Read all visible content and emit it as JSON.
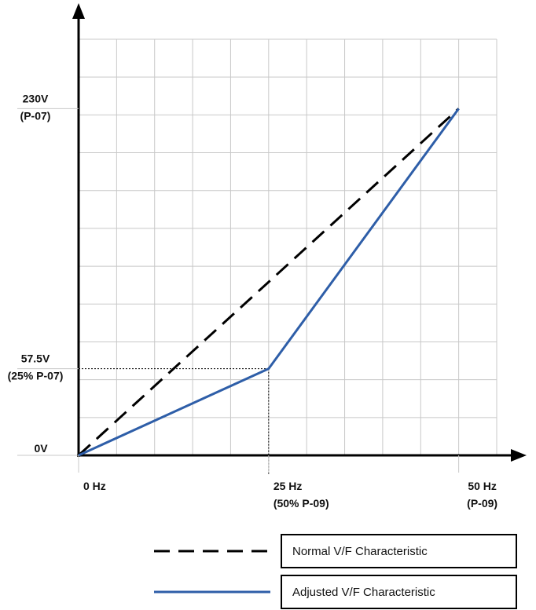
{
  "chart_data": {
    "type": "line",
    "xlim": [
      0,
      55
    ],
    "ylim": [
      0,
      276
    ],
    "grid": true,
    "legend_placement": "bottom",
    "x_ticks": [
      {
        "value": 0,
        "line1": "0 Hz",
        "line2": ""
      },
      {
        "value": 25,
        "line1": "25 Hz",
        "line2": "(50% P-09)"
      },
      {
        "value": 50,
        "line1": "50 Hz",
        "line2": "(P-09)"
      }
    ],
    "y_ticks": [
      {
        "value": 0,
        "line1": "0V",
        "line2": ""
      },
      {
        "value": 57.5,
        "line1": "57.5V",
        "line2": "(25% P-07)"
      },
      {
        "value": 230,
        "line1": "230V",
        "line2": "(P-07)"
      }
    ],
    "series": [
      {
        "name": "Normal V/F Characteristic",
        "color": "#000000",
        "style": "dashed",
        "x": [
          0,
          50
        ],
        "y": [
          0,
          230
        ]
      },
      {
        "name": "Adjusted V/F Characteristic",
        "color": "#2e5ea8",
        "style": "solid",
        "x": [
          0,
          25,
          50
        ],
        "y": [
          0,
          57.5,
          230
        ]
      }
    ],
    "reference_point": {
      "x": 25,
      "y": 57.5
    }
  }
}
